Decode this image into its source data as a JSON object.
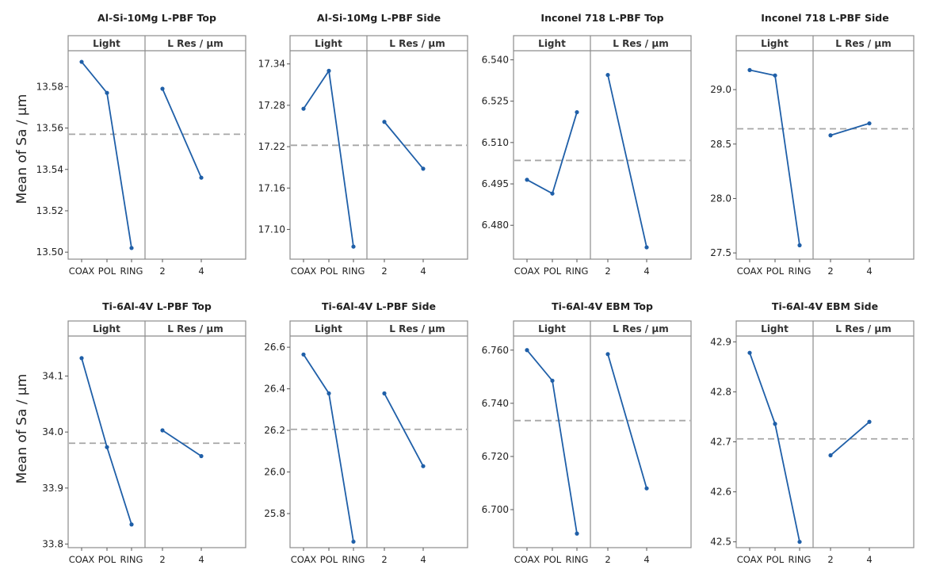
{
  "y_axis_label": "Mean of Sa / µm",
  "colors": {
    "series": "#1f5fa8",
    "mean_line": "#a6a6a6",
    "frame": "#8c8c8c",
    "strip_bg": "#ffffff"
  },
  "chart_data": [
    {
      "type": "line",
      "title": "Al-Si-10Mg L-PBF Top",
      "panels": [
        {
          "strip": "Light",
          "tick_labels": [
            "COAX",
            "POL",
            "RING"
          ],
          "values": [
            13.592,
            13.577,
            13.502
          ]
        },
        {
          "strip": "L Res / µm",
          "tick_labels": [
            "2",
            "4"
          ],
          "values": [
            13.579,
            13.536
          ]
        }
      ],
      "mean": 13.557,
      "ylim": [
        13.497,
        13.597
      ],
      "yticks": [
        "13.50",
        "13.52",
        "13.54",
        "13.56",
        "13.58"
      ],
      "ytick_values": [
        13.5,
        13.52,
        13.54,
        13.56,
        13.58
      ]
    },
    {
      "type": "line",
      "title": "Al-Si-10Mg L-PBF Side",
      "panels": [
        {
          "strip": "Light",
          "tick_labels": [
            "COAX",
            "POL",
            "RING"
          ],
          "values": [
            17.275,
            17.33,
            17.075
          ]
        },
        {
          "strip": "L Res / µm",
          "tick_labels": [
            "2",
            "4"
          ],
          "values": [
            17.256,
            17.188
          ]
        }
      ],
      "mean": 17.222,
      "ylim": [
        17.058,
        17.358
      ],
      "yticks": [
        "17.10",
        "17.16",
        "17.22",
        "17.28",
        "17.34"
      ],
      "ytick_values": [
        17.1,
        17.16,
        17.22,
        17.28,
        17.34
      ]
    },
    {
      "type": "line",
      "title": "Inconel 718 L-PBF Top",
      "panels": [
        {
          "strip": "Light",
          "tick_labels": [
            "COAX",
            "POL",
            "RING"
          ],
          "values": [
            6.4965,
            6.4915,
            6.521
          ]
        },
        {
          "strip": "L Res / µm",
          "tick_labels": [
            "2",
            "4"
          ],
          "values": [
            6.5345,
            6.472
          ]
        }
      ],
      "mean": 6.5035,
      "ylim": [
        6.468,
        6.543
      ],
      "yticks": [
        "6.480",
        "6.495",
        "6.510",
        "6.525",
        "6.540"
      ],
      "ytick_values": [
        6.48,
        6.495,
        6.51,
        6.525,
        6.54
      ]
    },
    {
      "type": "line",
      "title": "Inconel 718 L-PBF Side",
      "panels": [
        {
          "strip": "Light",
          "tick_labels": [
            "COAX",
            "POL",
            "RING"
          ],
          "values": [
            29.18,
            29.13,
            27.57
          ]
        },
        {
          "strip": "L Res / µm",
          "tick_labels": [
            "2",
            "4"
          ],
          "values": [
            28.58,
            28.69
          ]
        }
      ],
      "mean": 28.64,
      "ylim": [
        27.45,
        29.35
      ],
      "yticks": [
        "27.5",
        "28.0",
        "28.5",
        "29.0"
      ],
      "ytick_values": [
        27.5,
        28.0,
        28.5,
        29.0
      ]
    },
    {
      "type": "line",
      "title": "Ti-6Al-4V L-PBF Top",
      "panels": [
        {
          "strip": "Light",
          "tick_labels": [
            "COAX",
            "POL",
            "RING"
          ],
          "values": [
            34.132,
            33.973,
            33.835
          ]
        },
        {
          "strip": "L Res / µm",
          "tick_labels": [
            "2",
            "4"
          ],
          "values": [
            34.003,
            33.957
          ]
        }
      ],
      "mean": 33.98,
      "ylim": [
        33.795,
        34.17
      ],
      "yticks": [
        "33.8",
        "33.9",
        "34.0",
        "34.1"
      ],
      "ytick_values": [
        33.8,
        33.9,
        34.0,
        34.1
      ]
    },
    {
      "type": "line",
      "title": "Ti-6Al-4V L-PBF Side",
      "panels": [
        {
          "strip": "Light",
          "tick_labels": [
            "COAX",
            "POL",
            "RING"
          ],
          "values": [
            26.565,
            26.378,
            25.665
          ]
        },
        {
          "strip": "L Res / µm",
          "tick_labels": [
            "2",
            "4"
          ],
          "values": [
            26.378,
            26.028
          ]
        }
      ],
      "mean": 26.205,
      "ylim": [
        25.64,
        26.65
      ],
      "yticks": [
        "25.8",
        "26.0",
        "26.2",
        "26.4",
        "26.6"
      ],
      "ytick_values": [
        25.8,
        26.0,
        26.2,
        26.4,
        26.6
      ]
    },
    {
      "type": "line",
      "title": "Ti-6Al-4V EBM Top",
      "panels": [
        {
          "strip": "Light",
          "tick_labels": [
            "COAX",
            "POL",
            "RING"
          ],
          "values": [
            6.76,
            6.7485,
            6.691
          ]
        },
        {
          "strip": "L Res / µm",
          "tick_labels": [
            "2",
            "4"
          ],
          "values": [
            6.7585,
            6.708
          ]
        }
      ],
      "mean": 6.7335,
      "ylim": [
        6.686,
        6.765
      ],
      "yticks": [
        "6.700",
        "6.720",
        "6.740",
        "6.760"
      ],
      "ytick_values": [
        6.7,
        6.72,
        6.74,
        6.76
      ]
    },
    {
      "type": "line",
      "title": "Ti-6Al-4V EBM Side",
      "panels": [
        {
          "strip": "Light",
          "tick_labels": [
            "COAX",
            "POL",
            "RING"
          ],
          "values": [
            42.878,
            42.736,
            42.5
          ]
        },
        {
          "strip": "L Res / µm",
          "tick_labels": [
            "2",
            "4"
          ],
          "values": [
            42.673,
            42.74
          ]
        }
      ],
      "mean": 42.706,
      "ylim": [
        42.49,
        42.91
      ],
      "yticks": [
        "42.5",
        "42.6",
        "42.7",
        "42.8",
        "42.9"
      ],
      "ytick_values": [
        42.5,
        42.6,
        42.7,
        42.8,
        42.9
      ]
    }
  ]
}
